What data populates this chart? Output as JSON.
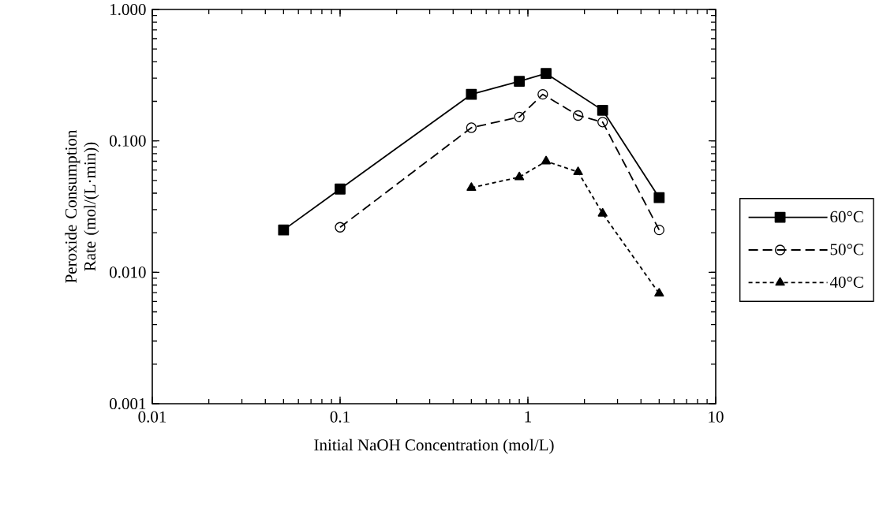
{
  "chart_data": {
    "type": "line",
    "xlabel": "Initial NaOH Concentration (mol/L)",
    "ylabel": "Peroxide Consumption Rate (mol/(L·min))",
    "log": "xy",
    "legend": "right",
    "xlim": [
      0.01,
      10
    ],
    "xticks": [
      0.01,
      0.1,
      1,
      10
    ],
    "ylim": [
      0.001,
      1
    ],
    "yticks": [
      {
        "value": 0.001,
        "label": "0.001"
      },
      {
        "value": 0.01,
        "label": "0.010"
      },
      {
        "value": 0.1,
        "label": "0.100"
      },
      {
        "value": 1,
        "label": "1.000"
      }
    ],
    "series": [
      {
        "name": "60°C",
        "color": "#000000",
        "marker": "square",
        "line_style": "solid",
        "x": [
          0.05,
          0.1,
          0.5,
          0.9,
          1.25,
          2.5,
          5
        ],
        "values": [
          0.021,
          0.043,
          0.226,
          0.284,
          0.326,
          0.171,
          0.037
        ]
      },
      {
        "name": "50°C",
        "color": "#000000",
        "marker": "circle",
        "line_style": "dashed",
        "x": [
          0.1,
          0.5,
          0.9,
          1.2,
          1.85,
          2.5,
          5
        ],
        "values": [
          0.022,
          0.126,
          0.152,
          0.226,
          0.156,
          0.139,
          0.021
        ]
      },
      {
        "name": "40°C",
        "color": "#000000",
        "marker": "triangle",
        "line_style": "dotted",
        "x": [
          0.5,
          0.9,
          1.25,
          1.85,
          2.5,
          5
        ],
        "values": [
          0.044,
          0.053,
          0.07,
          0.058,
          0.028,
          0.0069
        ]
      }
    ]
  }
}
